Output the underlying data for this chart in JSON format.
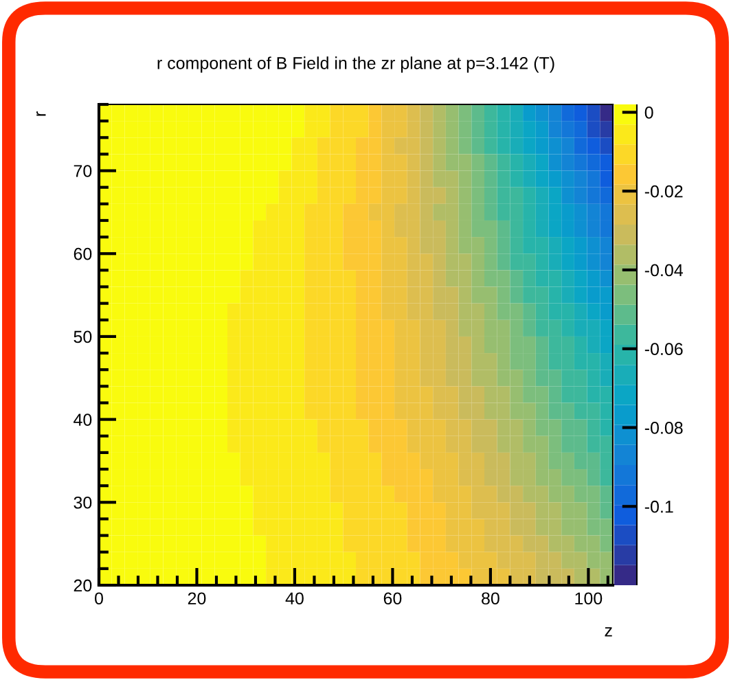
{
  "chart_data": {
    "type": "heatmap",
    "title": "r component of B Field in the zr plane at p=3.142 (T)",
    "xlabel": "z",
    "ylabel": "r",
    "x": [
      1.3125,
      3.9375,
      6.5625,
      9.1875,
      11.8125,
      14.4375,
      17.0625,
      19.6875,
      22.3125,
      24.9375,
      27.5625,
      30.1875,
      32.8125,
      35.4375,
      38.0625,
      40.6875,
      43.3125,
      45.9375,
      48.5625,
      51.1875,
      53.8125,
      56.4375,
      59.0625,
      61.6875,
      64.3125,
      66.9375,
      69.5625,
      72.1875,
      74.8125,
      77.4375,
      80.0625,
      82.6875,
      85.3125,
      87.9375,
      90.5625,
      93.1875,
      95.8125,
      98.4375,
      101.0625,
      103.6875
    ],
    "y": [
      77,
      75,
      73,
      71,
      69,
      67,
      65,
      63,
      61,
      59,
      57,
      55,
      53,
      51,
      49,
      47,
      45,
      43,
      41,
      39,
      37,
      35,
      33,
      31,
      29,
      27,
      25,
      23,
      21
    ],
    "xlim": [
      0,
      105
    ],
    "ylim": [
      20,
      78
    ],
    "xticks": [
      0,
      {
        "value": 4,
        "label": null
      },
      {
        "value": 8,
        "label": null
      },
      {
        "value": 12,
        "label": null
      },
      {
        "value": 16,
        "label": null
      },
      20,
      {
        "value": 24,
        "label": null
      },
      {
        "value": 28,
        "label": null
      },
      {
        "value": 32,
        "label": null
      },
      {
        "value": 36,
        "label": null
      },
      40,
      {
        "value": 44,
        "label": null
      },
      {
        "value": 48,
        "label": null
      },
      {
        "value": 52,
        "label": null
      },
      {
        "value": 56,
        "label": null
      },
      60,
      {
        "value": 64,
        "label": null
      },
      {
        "value": 68,
        "label": null
      },
      {
        "value": 72,
        "label": null
      },
      {
        "value": 76,
        "label": null
      },
      80,
      {
        "value": 84,
        "label": null
      },
      {
        "value": 88,
        "label": null
      },
      {
        "value": 92,
        "label": null
      },
      {
        "value": 96,
        "label": null
      },
      100,
      {
        "value": 104,
        "label": null
      }
    ],
    "yticks": [
      20,
      {
        "value": 22,
        "label": null
      },
      {
        "value": 24,
        "label": null
      },
      {
        "value": 26,
        "label": null
      },
      {
        "value": 28,
        "label": null
      },
      30,
      {
        "value": 32,
        "label": null
      },
      {
        "value": 34,
        "label": null
      },
      {
        "value": 36,
        "label": null
      },
      {
        "value": 38,
        "label": null
      },
      40,
      {
        "value": 42,
        "label": null
      },
      {
        "value": 44,
        "label": null
      },
      {
        "value": 46,
        "label": null
      },
      {
        "value": 48,
        "label": null
      },
      50,
      {
        "value": 52,
        "label": null
      },
      {
        "value": 54,
        "label": null
      },
      {
        "value": 56,
        "label": null
      },
      {
        "value": 58,
        "label": null
      },
      60,
      {
        "value": 62,
        "label": null
      },
      {
        "value": 64,
        "label": null
      },
      {
        "value": 66,
        "label": null
      },
      {
        "value": 68,
        "label": null
      },
      70,
      {
        "value": 72,
        "label": null
      },
      {
        "value": 74,
        "label": null
      },
      {
        "value": 76,
        "label": null
      },
      {
        "value": 78,
        "label": null
      }
    ],
    "clim": [
      -0.12,
      0.002
    ],
    "cticks": [
      0,
      -0.02,
      -0.04,
      -0.06,
      -0.08,
      -0.1
    ],
    "cells": [
      [
        -0.001,
        -0.001,
        -0.001,
        -0.001,
        -0.001,
        -0.001,
        -0.001,
        -0.001,
        -0.001,
        -0.001,
        -0.001,
        -0.001,
        -0.001,
        -0.001,
        -0.001,
        -0.001,
        -0.006,
        -0.006,
        -0.01,
        -0.011,
        -0.013,
        -0.016,
        -0.019,
        -0.022,
        -0.026,
        -0.031,
        -0.035,
        -0.04,
        -0.045,
        -0.051,
        -0.056,
        -0.062,
        -0.068,
        -0.075,
        -0.081,
        -0.088,
        -0.095,
        -0.102,
        -0.109,
        -0.117
      ],
      [
        -0.001,
        -0.001,
        -0.001,
        -0.001,
        -0.001,
        -0.001,
        -0.001,
        -0.001,
        -0.001,
        -0.001,
        -0.001,
        -0.001,
        -0.001,
        -0.001,
        -0.001,
        -0.001,
        -0.006,
        -0.006,
        -0.01,
        -0.011,
        -0.013,
        -0.016,
        -0.019,
        -0.022,
        -0.026,
        -0.03,
        -0.034,
        -0.039,
        -0.044,
        -0.049,
        -0.054,
        -0.06,
        -0.066,
        -0.072,
        -0.079,
        -0.085,
        -0.092,
        -0.099,
        -0.106,
        -0.113
      ],
      [
        -0.001,
        -0.001,
        -0.001,
        -0.001,
        -0.001,
        -0.001,
        -0.001,
        -0.001,
        -0.001,
        -0.001,
        -0.001,
        -0.001,
        -0.001,
        -0.001,
        -0.001,
        -0.006,
        -0.006,
        -0.01,
        -0.011,
        -0.013,
        -0.015,
        -0.018,
        -0.021,
        -0.024,
        -0.028,
        -0.031,
        -0.036,
        -0.04,
        -0.045,
        -0.049,
        -0.054,
        -0.06,
        -0.065,
        -0.071,
        -0.077,
        -0.082,
        -0.089,
        -0.095,
        -0.101,
        -0.108
      ],
      [
        -0.001,
        -0.001,
        -0.001,
        -0.001,
        -0.001,
        -0.001,
        -0.001,
        -0.001,
        -0.001,
        -0.001,
        -0.001,
        -0.001,
        -0.001,
        -0.001,
        -0.001,
        -0.006,
        -0.006,
        -0.01,
        -0.011,
        -0.013,
        -0.015,
        -0.017,
        -0.02,
        -0.023,
        -0.027,
        -0.031,
        -0.035,
        -0.039,
        -0.043,
        -0.048,
        -0.053,
        -0.058,
        -0.063,
        -0.068,
        -0.074,
        -0.08,
        -0.085,
        -0.091,
        -0.098,
        -0.104
      ],
      [
        -0.001,
        -0.001,
        -0.001,
        -0.001,
        -0.001,
        -0.001,
        -0.001,
        -0.001,
        -0.001,
        -0.001,
        -0.001,
        -0.001,
        -0.001,
        -0.001,
        -0.006,
        -0.006,
        -0.006,
        -0.01,
        -0.011,
        -0.012,
        -0.015,
        -0.017,
        -0.02,
        -0.023,
        -0.026,
        -0.03,
        -0.034,
        -0.038,
        -0.042,
        -0.046,
        -0.051,
        -0.056,
        -0.061,
        -0.066,
        -0.071,
        -0.077,
        -0.082,
        -0.088,
        -0.094,
        -0.1
      ],
      [
        -0.001,
        -0.001,
        -0.001,
        -0.001,
        -0.001,
        -0.001,
        -0.001,
        -0.001,
        -0.001,
        -0.001,
        -0.001,
        -0.001,
        -0.001,
        -0.001,
        -0.006,
        -0.006,
        -0.006,
        -0.01,
        -0.011,
        -0.012,
        -0.014,
        -0.017,
        -0.019,
        -0.022,
        -0.026,
        -0.029,
        -0.033,
        -0.037,
        -0.041,
        -0.045,
        -0.05,
        -0.054,
        -0.059,
        -0.064,
        -0.069,
        -0.074,
        -0.08,
        -0.085,
        -0.091,
        -0.097
      ],
      [
        -0.001,
        -0.001,
        -0.001,
        -0.001,
        -0.001,
        -0.001,
        -0.001,
        -0.001,
        -0.001,
        -0.001,
        -0.001,
        -0.001,
        -0.001,
        -0.006,
        -0.006,
        -0.006,
        -0.01,
        -0.011,
        -0.012,
        -0.014,
        -0.016,
        -0.019,
        -0.021,
        -0.024,
        -0.027,
        -0.031,
        -0.034,
        -0.038,
        -0.042,
        -0.046,
        -0.05,
        -0.054,
        -0.059,
        -0.063,
        -0.068,
        -0.073,
        -0.078,
        -0.083,
        -0.089,
        -0.094
      ],
      [
        -0.001,
        -0.001,
        -0.001,
        -0.001,
        -0.001,
        -0.001,
        -0.001,
        -0.001,
        -0.001,
        -0.001,
        -0.001,
        -0.001,
        -0.006,
        -0.006,
        -0.006,
        -0.006,
        -0.01,
        -0.011,
        -0.012,
        -0.014,
        -0.016,
        -0.018,
        -0.021,
        -0.024,
        -0.027,
        -0.03,
        -0.033,
        -0.037,
        -0.041,
        -0.044,
        -0.048,
        -0.053,
        -0.057,
        -0.061,
        -0.066,
        -0.071,
        -0.076,
        -0.081,
        -0.086,
        -0.091
      ],
      [
        -0.001,
        -0.001,
        -0.001,
        -0.001,
        -0.001,
        -0.001,
        -0.001,
        -0.001,
        -0.001,
        -0.001,
        -0.001,
        -0.001,
        -0.006,
        -0.006,
        -0.006,
        -0.006,
        -0.01,
        -0.011,
        -0.012,
        -0.014,
        -0.016,
        -0.018,
        -0.02,
        -0.023,
        -0.026,
        -0.029,
        -0.032,
        -0.036,
        -0.039,
        -0.043,
        -0.047,
        -0.051,
        -0.055,
        -0.06,
        -0.064,
        -0.069,
        -0.073,
        -0.078,
        -0.083,
        -0.088
      ],
      [
        -0.001,
        -0.001,
        -0.001,
        -0.001,
        -0.001,
        -0.001,
        -0.001,
        -0.001,
        -0.001,
        -0.001,
        -0.001,
        -0.001,
        -0.006,
        -0.006,
        -0.006,
        -0.006,
        -0.01,
        -0.011,
        -0.012,
        -0.014,
        -0.015,
        -0.018,
        -0.02,
        -0.023,
        -0.025,
        -0.028,
        -0.032,
        -0.035,
        -0.038,
        -0.042,
        -0.046,
        -0.05,
        -0.054,
        -0.058,
        -0.062,
        -0.066,
        -0.071,
        -0.075,
        -0.08,
        -0.085
      ],
      [
        -0.001,
        -0.001,
        -0.001,
        -0.001,
        -0.001,
        -0.001,
        -0.001,
        -0.001,
        -0.001,
        -0.001,
        -0.001,
        -0.006,
        -0.006,
        -0.006,
        -0.006,
        -0.006,
        -0.01,
        -0.011,
        -0.012,
        -0.013,
        -0.015,
        -0.017,
        -0.02,
        -0.022,
        -0.025,
        -0.028,
        -0.031,
        -0.034,
        -0.037,
        -0.041,
        -0.044,
        -0.048,
        -0.052,
        -0.056,
        -0.06,
        -0.064,
        -0.068,
        -0.073,
        -0.077,
        -0.082
      ],
      [
        -0.001,
        -0.001,
        -0.001,
        -0.001,
        -0.001,
        -0.001,
        -0.001,
        -0.001,
        -0.001,
        -0.001,
        -0.001,
        -0.006,
        -0.006,
        -0.006,
        -0.006,
        -0.006,
        -0.01,
        -0.011,
        -0.012,
        -0.013,
        -0.015,
        -0.017,
        -0.019,
        -0.022,
        -0.024,
        -0.027,
        -0.03,
        -0.033,
        -0.036,
        -0.039,
        -0.043,
        -0.046,
        -0.05,
        -0.054,
        -0.058,
        -0.062,
        -0.066,
        -0.07,
        -0.075,
        -0.079
      ],
      [
        -0.001,
        -0.001,
        -0.001,
        -0.001,
        -0.001,
        -0.001,
        -0.001,
        -0.001,
        -0.001,
        -0.001,
        -0.006,
        -0.006,
        -0.006,
        -0.006,
        -0.006,
        -0.006,
        -0.01,
        -0.011,
        -0.012,
        -0.013,
        -0.015,
        -0.017,
        -0.019,
        -0.021,
        -0.024,
        -0.026,
        -0.029,
        -0.032,
        -0.035,
        -0.038,
        -0.041,
        -0.045,
        -0.048,
        -0.052,
        -0.056,
        -0.06,
        -0.064,
        -0.068,
        -0.072,
        -0.076
      ],
      [
        -0.001,
        -0.001,
        -0.001,
        -0.001,
        -0.001,
        -0.001,
        -0.001,
        -0.001,
        -0.001,
        -0.001,
        -0.006,
        -0.006,
        -0.006,
        -0.006,
        -0.006,
        -0.006,
        -0.01,
        -0.011,
        -0.012,
        -0.013,
        -0.015,
        -0.016,
        -0.018,
        -0.021,
        -0.023,
        -0.025,
        -0.028,
        -0.031,
        -0.034,
        -0.037,
        -0.04,
        -0.043,
        -0.047,
        -0.05,
        -0.054,
        -0.057,
        -0.061,
        -0.065,
        -0.069,
        -0.073
      ],
      [
        -0.001,
        -0.001,
        -0.001,
        -0.001,
        -0.001,
        -0.001,
        -0.001,
        -0.001,
        -0.001,
        -0.001,
        -0.006,
        -0.006,
        -0.006,
        -0.006,
        -0.006,
        -0.006,
        -0.01,
        -0.011,
        -0.012,
        -0.013,
        -0.014,
        -0.016,
        -0.018,
        -0.02,
        -0.022,
        -0.025,
        -0.027,
        -0.03,
        -0.033,
        -0.036,
        -0.039,
        -0.042,
        -0.045,
        -0.048,
        -0.052,
        -0.055,
        -0.059,
        -0.062,
        -0.066,
        -0.07
      ],
      [
        -0.001,
        -0.001,
        -0.001,
        -0.001,
        -0.001,
        -0.001,
        -0.001,
        -0.001,
        -0.001,
        -0.001,
        -0.006,
        -0.006,
        -0.006,
        -0.006,
        -0.006,
        -0.006,
        -0.01,
        -0.011,
        -0.011,
        -0.013,
        -0.014,
        -0.016,
        -0.018,
        -0.02,
        -0.022,
        -0.024,
        -0.027,
        -0.029,
        -0.032,
        -0.035,
        -0.038,
        -0.041,
        -0.044,
        -0.047,
        -0.05,
        -0.054,
        -0.057,
        -0.061,
        -0.064,
        -0.068
      ],
      [
        -0.001,
        -0.001,
        -0.001,
        -0.001,
        -0.001,
        -0.001,
        -0.001,
        -0.001,
        -0.001,
        -0.001,
        -0.006,
        -0.006,
        -0.006,
        -0.006,
        -0.006,
        -0.006,
        -0.01,
        -0.011,
        -0.011,
        -0.013,
        -0.014,
        -0.016,
        -0.017,
        -0.019,
        -0.021,
        -0.024,
        -0.026,
        -0.029,
        -0.031,
        -0.034,
        -0.037,
        -0.039,
        -0.043,
        -0.046,
        -0.049,
        -0.052,
        -0.055,
        -0.059,
        -0.062,
        -0.066
      ],
      [
        -0.001,
        -0.001,
        -0.001,
        -0.001,
        -0.001,
        -0.001,
        -0.001,
        -0.001,
        -0.001,
        -0.001,
        -0.006,
        -0.006,
        -0.006,
        -0.006,
        -0.006,
        -0.006,
        -0.01,
        -0.01,
        -0.011,
        -0.013,
        -0.014,
        -0.015,
        -0.017,
        -0.019,
        -0.021,
        -0.023,
        -0.025,
        -0.028,
        -0.03,
        -0.033,
        -0.036,
        -0.038,
        -0.041,
        -0.044,
        -0.047,
        -0.051,
        -0.054,
        -0.057,
        -0.061,
        -0.064
      ],
      [
        -0.001,
        -0.001,
        -0.001,
        -0.001,
        -0.001,
        -0.001,
        -0.001,
        -0.001,
        -0.001,
        -0.001,
        -0.006,
        -0.006,
        -0.006,
        -0.006,
        -0.006,
        -0.006,
        -0.01,
        -0.01,
        -0.011,
        -0.012,
        -0.014,
        -0.015,
        -0.017,
        -0.019,
        -0.021,
        -0.023,
        -0.025,
        -0.027,
        -0.03,
        -0.032,
        -0.035,
        -0.037,
        -0.04,
        -0.043,
        -0.046,
        -0.049,
        -0.052,
        -0.055,
        -0.059,
        -0.062
      ],
      [
        -0.001,
        -0.001,
        -0.001,
        -0.001,
        -0.001,
        -0.001,
        -0.001,
        -0.001,
        -0.001,
        -0.001,
        -0.006,
        -0.006,
        -0.006,
        -0.006,
        -0.006,
        -0.006,
        -0.006,
        -0.01,
        -0.01,
        -0.011,
        -0.013,
        -0.014,
        -0.015,
        -0.017,
        -0.019,
        -0.021,
        -0.023,
        -0.025,
        -0.028,
        -0.03,
        -0.033,
        -0.035,
        -0.038,
        -0.041,
        -0.044,
        -0.047,
        -0.05,
        -0.053,
        -0.057,
        -0.06
      ],
      [
        -0.001,
        -0.001,
        -0.001,
        -0.001,
        -0.001,
        -0.001,
        -0.001,
        -0.001,
        -0.001,
        -0.001,
        -0.006,
        -0.006,
        -0.006,
        -0.006,
        -0.006,
        -0.006,
        -0.006,
        -0.01,
        -0.01,
        -0.011,
        -0.012,
        -0.014,
        -0.015,
        -0.017,
        -0.019,
        -0.021,
        -0.023,
        -0.025,
        -0.027,
        -0.029,
        -0.032,
        -0.034,
        -0.037,
        -0.04,
        -0.043,
        -0.046,
        -0.049,
        -0.052,
        -0.055,
        -0.058
      ],
      [
        -0.001,
        -0.001,
        -0.001,
        -0.001,
        -0.001,
        -0.001,
        -0.001,
        -0.001,
        -0.001,
        -0.001,
        -0.001,
        -0.006,
        -0.006,
        -0.006,
        -0.006,
        -0.006,
        -0.006,
        -0.006,
        -0.01,
        -0.01,
        -0.011,
        -0.013,
        -0.014,
        -0.015,
        -0.017,
        -0.019,
        -0.021,
        -0.023,
        -0.025,
        -0.027,
        -0.03,
        -0.032,
        -0.035,
        -0.038,
        -0.041,
        -0.044,
        -0.047,
        -0.05,
        -0.053,
        -0.056
      ],
      [
        -0.001,
        -0.001,
        -0.001,
        -0.001,
        -0.001,
        -0.001,
        -0.001,
        -0.001,
        -0.001,
        -0.001,
        -0.001,
        -0.006,
        -0.006,
        -0.006,
        -0.006,
        -0.006,
        -0.006,
        -0.006,
        -0.01,
        -0.01,
        -0.011,
        -0.012,
        -0.014,
        -0.015,
        -0.017,
        -0.018,
        -0.02,
        -0.022,
        -0.024,
        -0.027,
        -0.029,
        -0.031,
        -0.034,
        -0.037,
        -0.039,
        -0.042,
        -0.045,
        -0.048,
        -0.051,
        -0.054
      ],
      [
        -0.001,
        -0.001,
        -0.001,
        -0.001,
        -0.001,
        -0.001,
        -0.001,
        -0.001,
        -0.001,
        -0.001,
        -0.001,
        -0.001,
        -0.006,
        -0.006,
        -0.006,
        -0.006,
        -0.006,
        -0.006,
        -0.01,
        -0.01,
        -0.011,
        -0.012,
        -0.013,
        -0.015,
        -0.016,
        -0.018,
        -0.02,
        -0.022,
        -0.023,
        -0.026,
        -0.028,
        -0.03,
        -0.032,
        -0.035,
        -0.037,
        -0.04,
        -0.043,
        -0.045,
        -0.048,
        -0.051
      ],
      [
        -0.001,
        -0.001,
        -0.001,
        -0.001,
        -0.001,
        -0.001,
        -0.001,
        -0.001,
        -0.001,
        -0.001,
        -0.001,
        -0.001,
        -0.006,
        -0.006,
        -0.006,
        -0.006,
        -0.006,
        -0.006,
        -0.006,
        -0.01,
        -0.01,
        -0.011,
        -0.012,
        -0.013,
        -0.015,
        -0.016,
        -0.018,
        -0.02,
        -0.022,
        -0.024,
        -0.026,
        -0.028,
        -0.03,
        -0.033,
        -0.035,
        -0.038,
        -0.041,
        -0.043,
        -0.046,
        -0.049
      ],
      [
        -0.001,
        -0.001,
        -0.001,
        -0.001,
        -0.001,
        -0.001,
        -0.001,
        -0.001,
        -0.001,
        -0.001,
        -0.001,
        -0.001,
        -0.006,
        -0.006,
        -0.006,
        -0.006,
        -0.006,
        -0.006,
        -0.006,
        -0.01,
        -0.01,
        -0.011,
        -0.012,
        -0.013,
        -0.015,
        -0.016,
        -0.018,
        -0.019,
        -0.021,
        -0.023,
        -0.025,
        -0.027,
        -0.029,
        -0.032,
        -0.034,
        -0.036,
        -0.039,
        -0.042,
        -0.044,
        -0.047
      ],
      [
        -0.001,
        -0.001,
        -0.001,
        -0.001,
        -0.001,
        -0.001,
        -0.001,
        -0.001,
        -0.001,
        -0.001,
        -0.001,
        -0.001,
        -0.001,
        -0.006,
        -0.006,
        -0.006,
        -0.006,
        -0.006,
        -0.006,
        -0.01,
        -0.01,
        -0.011,
        -0.012,
        -0.013,
        -0.014,
        -0.016,
        -0.017,
        -0.019,
        -0.021,
        -0.022,
        -0.024,
        -0.026,
        -0.028,
        -0.031,
        -0.033,
        -0.035,
        -0.037,
        -0.04,
        -0.042,
        -0.045
      ],
      [
        -0.001,
        -0.001,
        -0.001,
        -0.001,
        -0.001,
        -0.001,
        -0.001,
        -0.001,
        -0.001,
        -0.001,
        -0.001,
        -0.001,
        -0.001,
        -0.006,
        -0.006,
        -0.006,
        -0.006,
        -0.006,
        -0.006,
        -0.006,
        -0.01,
        -0.01,
        -0.011,
        -0.012,
        -0.013,
        -0.014,
        -0.016,
        -0.017,
        -0.019,
        -0.02,
        -0.022,
        -0.024,
        -0.026,
        -0.028,
        -0.03,
        -0.032,
        -0.035,
        -0.037,
        -0.04,
        -0.042
      ],
      [
        -0.001,
        -0.001,
        -0.001,
        -0.001,
        -0.001,
        -0.001,
        -0.001,
        -0.001,
        -0.001,
        -0.001,
        -0.001,
        -0.001,
        -0.001,
        -0.006,
        -0.006,
        -0.006,
        -0.006,
        -0.006,
        -0.006,
        -0.006,
        -0.01,
        -0.01,
        -0.011,
        -0.012,
        -0.013,
        -0.014,
        -0.015,
        -0.017,
        -0.018,
        -0.02,
        -0.021,
        -0.023,
        -0.025,
        -0.027,
        -0.029,
        -0.031,
        -0.033,
        -0.035,
        -0.038,
        -0.04
      ]
    ]
  }
}
